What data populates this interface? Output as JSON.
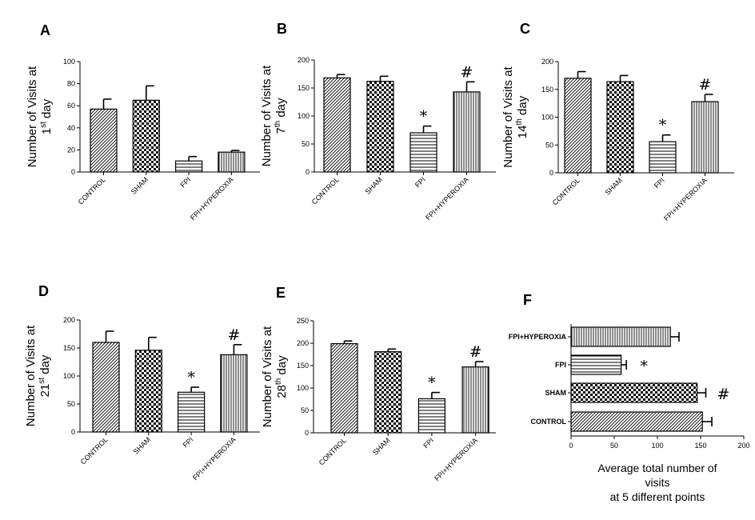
{
  "chart_data": [
    {
      "panel": "A",
      "type": "bar",
      "orientation": "vertical",
      "categories": [
        "CONTROL",
        "SHAM",
        "FPI",
        "FPI+HYPEROXIA"
      ],
      "values": [
        57,
        65,
        10,
        18
      ],
      "errors": [
        9,
        13,
        4,
        1.5
      ],
      "significance": [
        "",
        "",
        "",
        ""
      ],
      "ylabel": {
        "line1": "Number of Visits at",
        "ord": "1",
        "sup": "st",
        "post": " day"
      },
      "ylim": [
        0,
        100
      ],
      "yticks": [
        0,
        20,
        40,
        60,
        80,
        100
      ]
    },
    {
      "panel": "B",
      "type": "bar",
      "orientation": "vertical",
      "categories": [
        "CONTROL",
        "SHAM",
        "FPI",
        "FPI+HYPEROXIA"
      ],
      "values": [
        168,
        162,
        70,
        143
      ],
      "errors": [
        6,
        9,
        12,
        18
      ],
      "significance": [
        "",
        "",
        "*",
        "#"
      ],
      "ylabel": {
        "line1": "Number of Visits at",
        "ord": "7",
        "sup": "th",
        "post": "  day"
      },
      "ylim": [
        0,
        200
      ],
      "yticks": [
        0,
        50,
        100,
        150,
        200
      ]
    },
    {
      "panel": "C",
      "type": "bar",
      "orientation": "vertical",
      "categories": [
        "CONTROL",
        "SHAM",
        "FPI",
        "FPI+HYPEROXIA"
      ],
      "values": [
        170,
        164,
        56,
        128
      ],
      "errors": [
        12,
        11,
        12,
        13
      ],
      "significance": [
        "",
        "",
        "*",
        "#"
      ],
      "ylabel": {
        "line1": "Number of Visits at",
        "ord": "14",
        "sup": "th",
        "post": "  day"
      },
      "ylim": [
        0,
        200
      ],
      "yticks": [
        0,
        50,
        100,
        150,
        200
      ]
    },
    {
      "panel": "D",
      "type": "bar",
      "orientation": "vertical",
      "categories": [
        "CONTROL",
        "SHAM",
        "FPI",
        "FPI+HYPEROXIA"
      ],
      "values": [
        160,
        146,
        71,
        138
      ],
      "errors": [
        20,
        23,
        9,
        18
      ],
      "significance": [
        "",
        "",
        "*",
        "#"
      ],
      "ylabel": {
        "line1": "Number of Visits at",
        "ord": "21",
        "sup": "st",
        "post": "  day"
      },
      "ylim": [
        0,
        200
      ],
      "yticks": [
        0,
        50,
        100,
        150,
        200
      ]
    },
    {
      "panel": "E",
      "type": "bar",
      "orientation": "vertical",
      "categories": [
        "CONTROL",
        "SHAM",
        "FPI",
        "FPI+HYPEROXIA"
      ],
      "values": [
        199,
        181,
        76,
        147
      ],
      "errors": [
        6,
        6,
        14,
        12
      ],
      "significance": [
        "",
        "",
        "*",
        "#"
      ],
      "ylabel": {
        "line1": "Number of Visits at",
        "ord": "28",
        "sup": "th",
        "post": "  day"
      },
      "ylim": [
        0,
        250
      ],
      "yticks": [
        0,
        50,
        100,
        150,
        200,
        250
      ]
    },
    {
      "panel": "F",
      "type": "bar",
      "orientation": "horizontal",
      "categories": [
        "FPI+HYPEROXIA",
        "FPI",
        "SHAM",
        "CONTROL"
      ],
      "values": [
        115,
        58,
        146,
        152
      ],
      "errors": [
        10,
        6,
        10,
        11
      ],
      "significance": [
        "",
        "*",
        "#",
        ""
      ],
      "xlabel": [
        "Average total number of",
        "visits",
        "at 5 different points"
      ],
      "xlim": [
        0,
        200
      ],
      "xticks": [
        0,
        50,
        100,
        150,
        200
      ]
    }
  ],
  "bar_patterns": [
    "diag",
    "check",
    "hlines",
    "vlines"
  ]
}
